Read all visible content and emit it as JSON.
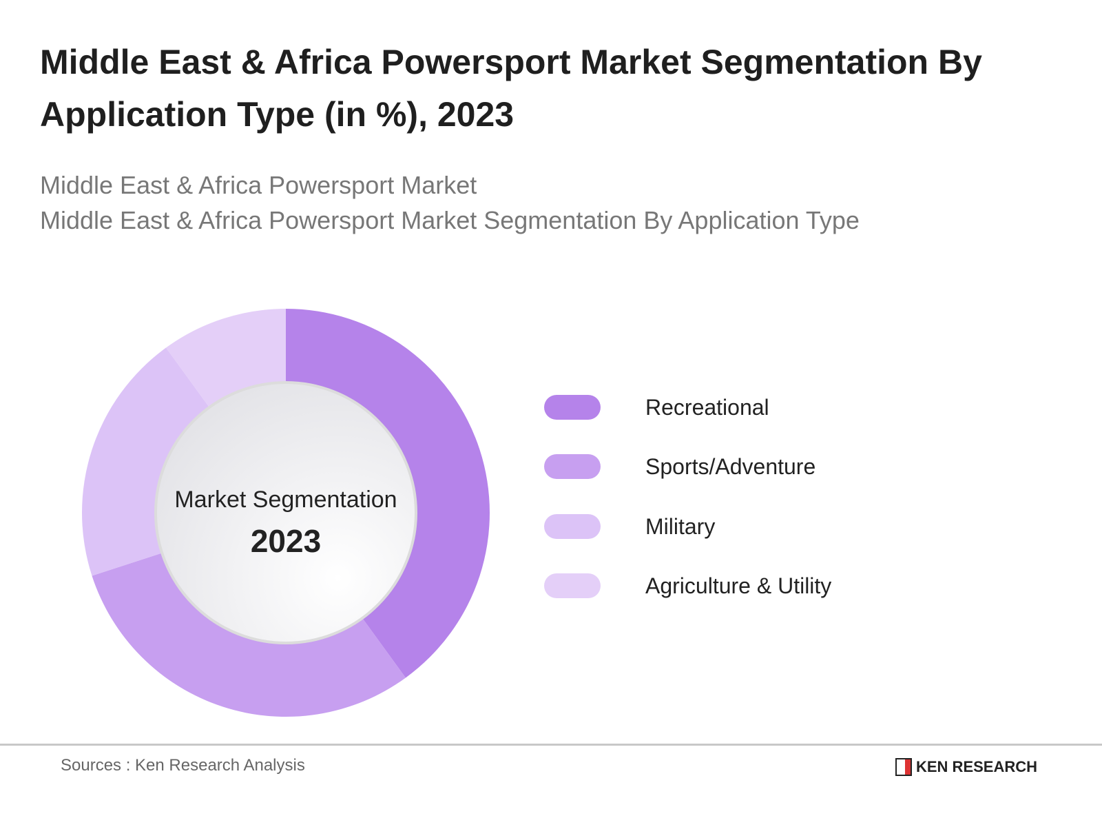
{
  "header": {
    "title": "Middle East & Africa Powersport Market Segmentation By Application Type (in %), 2023",
    "subtitle1": "Middle East & Africa Powersport Market",
    "subtitle2": "Middle East & Africa Powersport Market Segmentation By Application Type"
  },
  "chart_data": {
    "type": "pie",
    "variant": "donut",
    "title": "Middle East & Africa Powersport Market Segmentation By Application Type (in %), 2023",
    "center_label": "Market Segmentation",
    "center_year": "2023",
    "categories": [
      "Recreational",
      "Sports/Adventure",
      "Military",
      "Agriculture & Utility"
    ],
    "values": [
      40,
      30,
      20,
      10
    ],
    "colors": [
      "#b583ea",
      "#c79ff0",
      "#dcc3f7",
      "#e4cff8"
    ],
    "legend_position": "right"
  },
  "footer": {
    "source": "Sources : Ken Research Analysis",
    "logo_text": "KEN RESEARCH",
    "logo_mark": "K"
  }
}
